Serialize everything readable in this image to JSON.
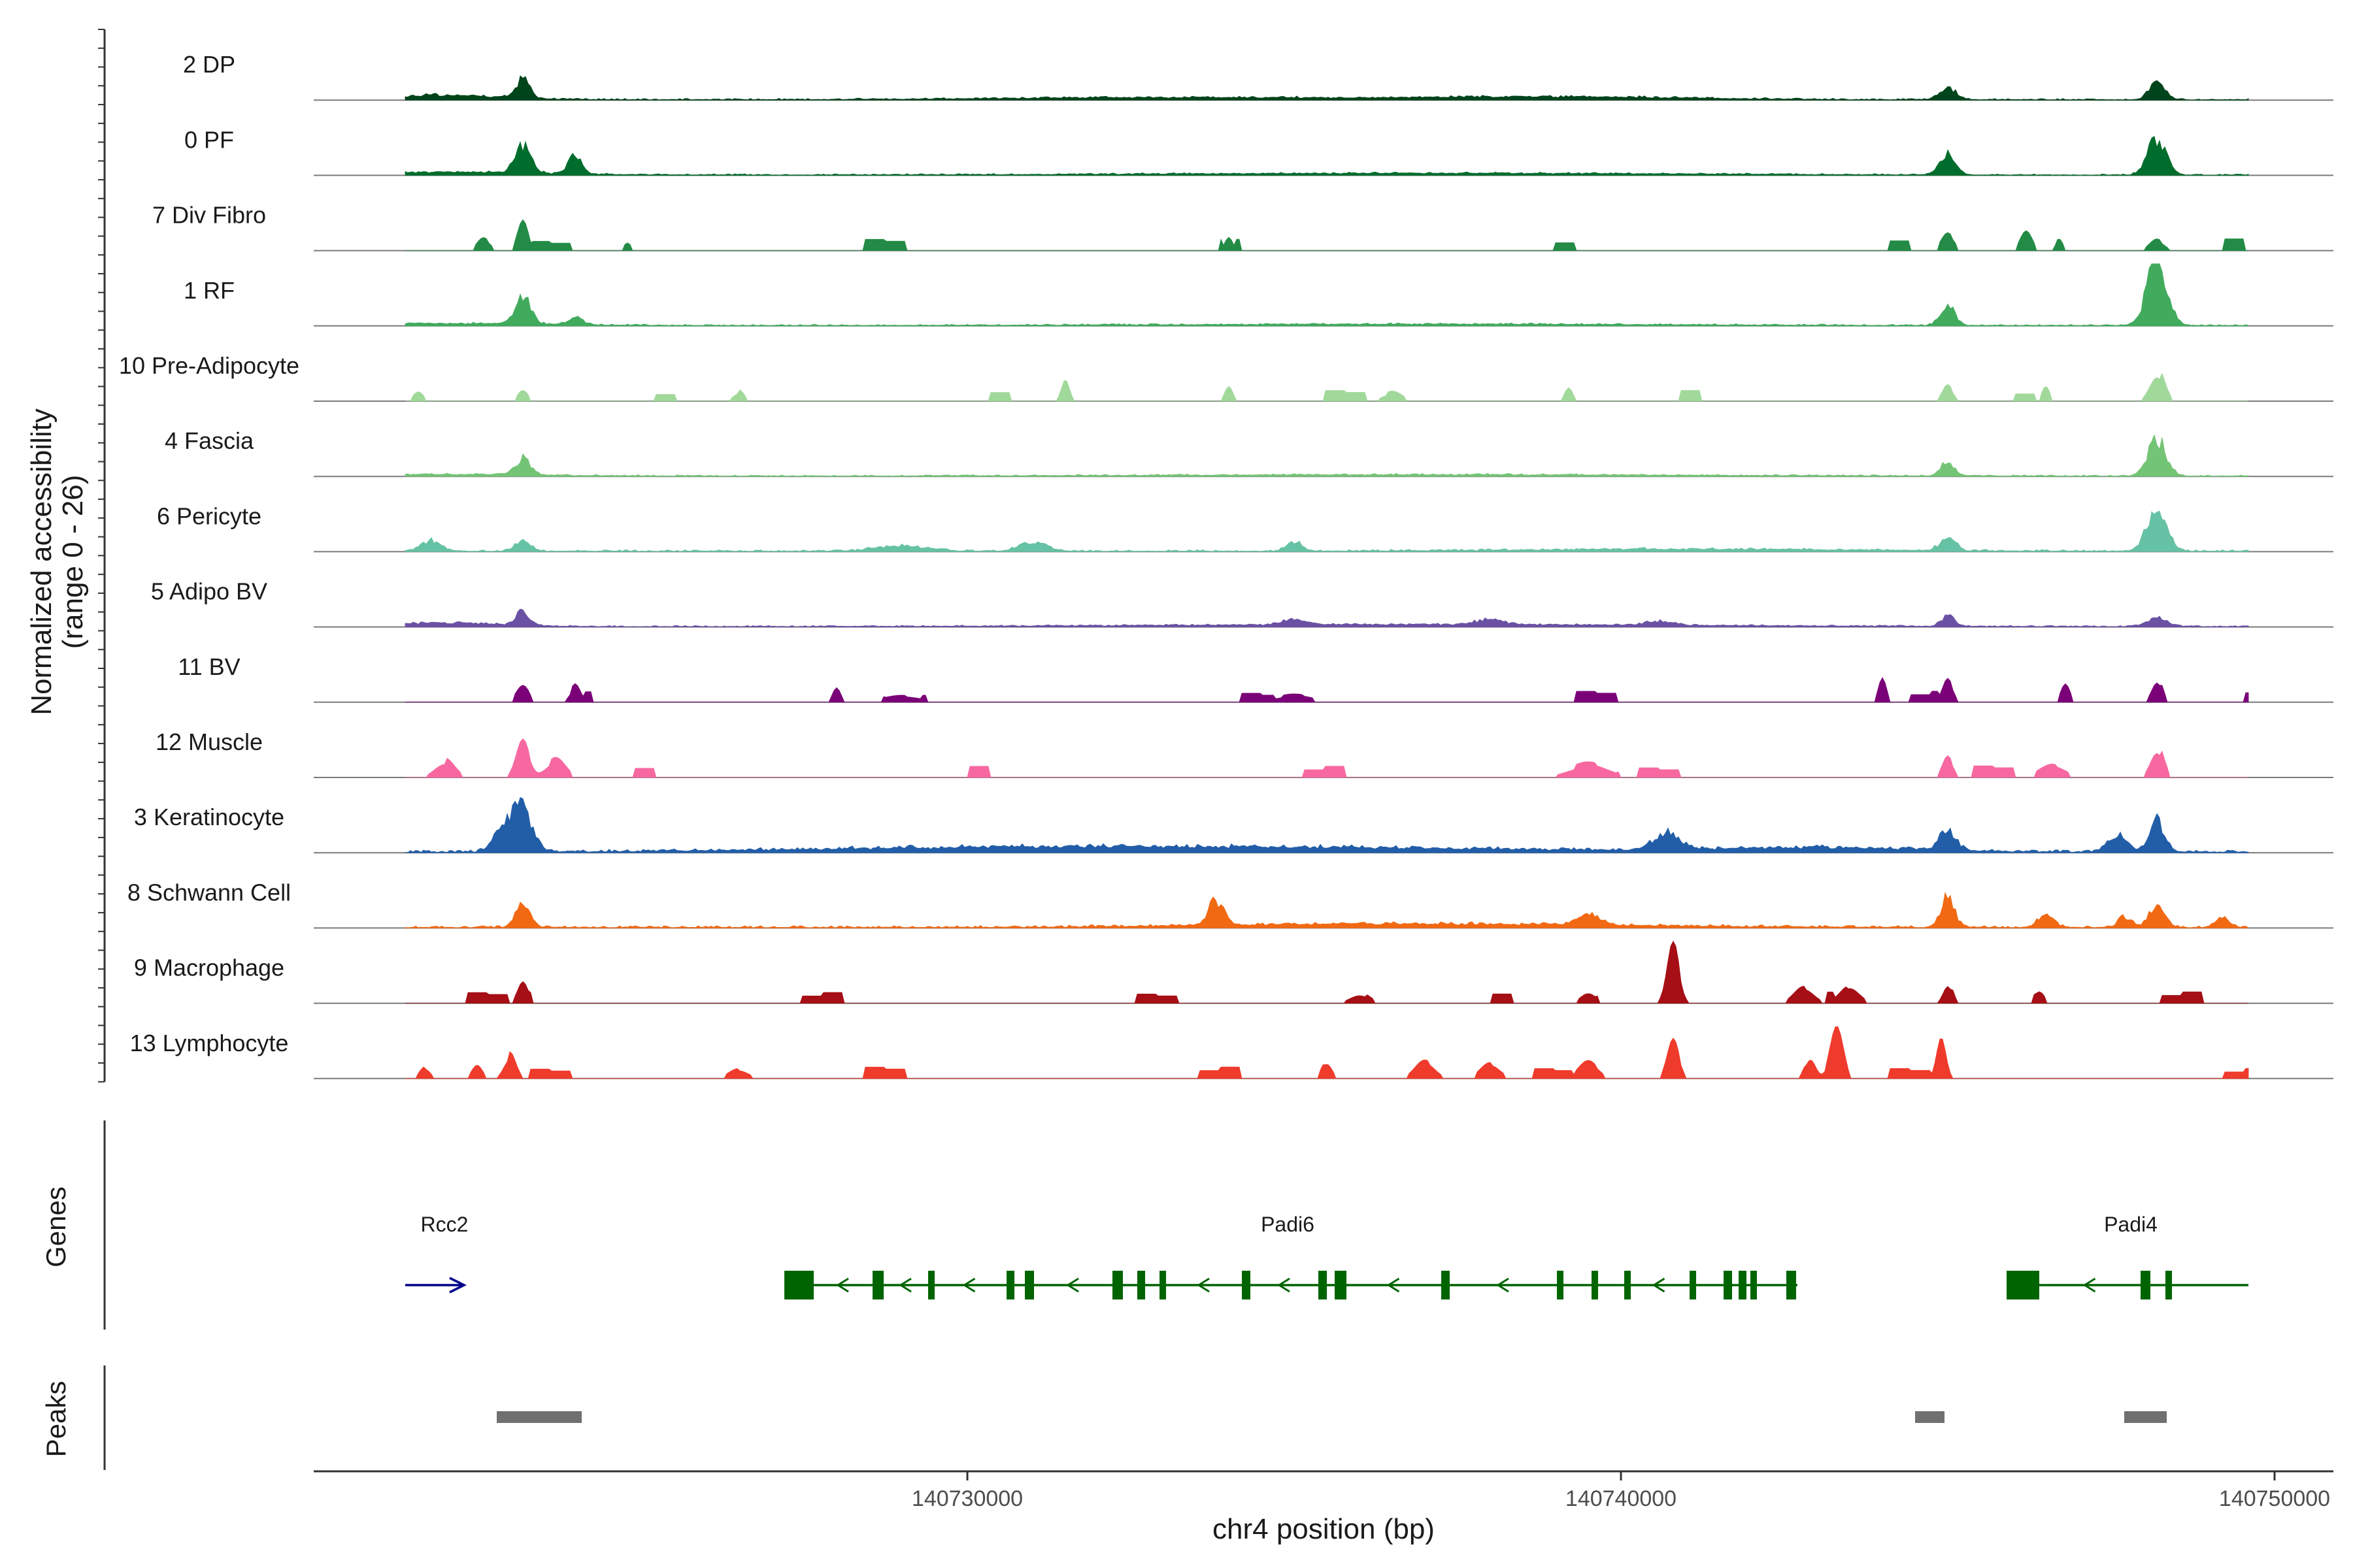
{
  "chart_data": {
    "type": "area",
    "title": "",
    "ylabel": "Normalized accessibility",
    "ylabel_range": "(range 0 - 26)",
    "ylim": [
      0,
      26
    ],
    "xlabel": "chr4 position (bp)",
    "xlim": [
      140720000,
      140750900
    ],
    "x_ticks": [
      140730000,
      140740000,
      140750000
    ],
    "x_tick_labels": [
      "140730000",
      "140740000",
      "140750000"
    ],
    "genes_panel_label": "Genes",
    "peaks_panel_label": "Peaks",
    "series": [
      {
        "name": "2 DP",
        "color": "#00441b",
        "sparse": false,
        "noise": 0.035,
        "peaks": [
          [
            140723200,
            0.55,
            100
          ],
          [
            140722000,
            0.12,
            900
          ],
          [
            140745000,
            0.35,
            120
          ],
          [
            140748200,
            0.48,
            120
          ],
          [
            140739000,
            0.08,
            2000
          ],
          [
            140733000,
            0.06,
            2500
          ]
        ]
      },
      {
        "name": "0 PF",
        "color": "#006d2c",
        "sparse": false,
        "noise": 0.03,
        "peaks": [
          [
            140723200,
            0.75,
            120
          ],
          [
            140724000,
            0.5,
            100
          ],
          [
            140745000,
            0.55,
            120
          ],
          [
            140748200,
            1.0,
            140
          ],
          [
            140722000,
            0.08,
            1500
          ],
          [
            140737000,
            0.05,
            4000
          ]
        ]
      },
      {
        "name": "7 Div Fibro",
        "color": "#238b45",
        "sparse": true,
        "noise": 0.25,
        "peaks": [
          [
            140723200,
            0.7,
            80
          ],
          [
            140722600,
            0.35,
            100
          ],
          [
            140745000,
            0.4,
            100
          ],
          [
            140746200,
            0.55,
            90
          ],
          [
            140748200,
            0.35,
            110
          ],
          [
            140734000,
            0.3,
            60
          ],
          [
            140724800,
            0.28,
            60
          ],
          [
            140746700,
            0.28,
            60
          ]
        ]
      },
      {
        "name": "1 RF",
        "color": "#41ab5d",
        "sparse": false,
        "noise": 0.03,
        "peaks": [
          [
            140723200,
            0.75,
            120
          ],
          [
            140724000,
            0.25,
            100
          ],
          [
            140745000,
            0.55,
            110
          ],
          [
            140748200,
            1.85,
            150
          ],
          [
            140722000,
            0.06,
            1500
          ],
          [
            140737000,
            0.04,
            4000
          ]
        ]
      },
      {
        "name": "10 Pre-Adipocyte",
        "color": "#a1d99b",
        "sparse": true,
        "noise": 0.2,
        "peaks": [
          [
            140721600,
            0.3,
            80
          ],
          [
            140723200,
            0.3,
            80
          ],
          [
            140726500,
            0.3,
            80
          ],
          [
            140731500,
            0.65,
            60
          ],
          [
            140734000,
            0.4,
            60
          ],
          [
            140739200,
            0.3,
            60
          ],
          [
            140745000,
            0.45,
            80
          ],
          [
            140746500,
            0.35,
            60
          ],
          [
            140748200,
            0.9,
            110
          ],
          [
            140736500,
            0.25,
            150
          ]
        ]
      },
      {
        "name": "4 Fascia",
        "color": "#74c476",
        "sparse": false,
        "noise": 0.03,
        "peaks": [
          [
            140723200,
            0.45,
            110
          ],
          [
            140745000,
            0.4,
            100
          ],
          [
            140748200,
            1.0,
            140
          ],
          [
            140722000,
            0.05,
            1500
          ],
          [
            140737000,
            0.04,
            4000
          ]
        ]
      },
      {
        "name": "6 Pericyte",
        "color": "#66c2a4",
        "sparse": false,
        "noise": 0.04,
        "peaks": [
          [
            140723200,
            0.3,
            120
          ],
          [
            140721800,
            0.3,
            150
          ],
          [
            140731000,
            0.25,
            200
          ],
          [
            140729000,
            0.15,
            400
          ],
          [
            140735000,
            0.25,
            120
          ],
          [
            140745000,
            0.35,
            120
          ],
          [
            140748200,
            1.2,
            150
          ],
          [
            140741000,
            0.06,
            2500
          ]
        ]
      },
      {
        "name": "5 Adipo BV",
        "color": "#6a51a3",
        "sparse": false,
        "noise": 0.03,
        "peaks": [
          [
            140723200,
            0.4,
            100
          ],
          [
            140745000,
            0.3,
            100
          ],
          [
            140748200,
            0.25,
            150
          ],
          [
            140735000,
            0.15,
            180
          ],
          [
            140738000,
            0.15,
            200
          ],
          [
            140740600,
            0.12,
            200
          ],
          [
            140722000,
            0.1,
            900
          ],
          [
            140737000,
            0.06,
            4000
          ]
        ]
      },
      {
        "name": "11 BV",
        "color": "#7a0177",
        "sparse": true,
        "noise": 0.3,
        "peaks": [
          [
            140723200,
            0.4,
            100
          ],
          [
            140724000,
            0.45,
            80
          ],
          [
            140728000,
            0.4,
            60
          ],
          [
            140744000,
            0.55,
            60
          ],
          [
            140745000,
            0.55,
            80
          ],
          [
            140746800,
            0.45,
            70
          ],
          [
            140748200,
            0.6,
            80
          ],
          [
            140735000,
            0.2,
            300
          ],
          [
            140729000,
            0.2,
            300
          ]
        ]
      },
      {
        "name": "12 Muscle",
        "color": "#f768a1",
        "sparse": true,
        "noise": 0.3,
        "peaks": [
          [
            140723200,
            1.0,
            100
          ],
          [
            140722000,
            0.5,
            150
          ],
          [
            140723700,
            0.45,
            150
          ],
          [
            140745000,
            0.55,
            80
          ],
          [
            140748200,
            0.85,
            100
          ],
          [
            140739500,
            0.4,
            300
          ],
          [
            140746600,
            0.3,
            200
          ]
        ]
      },
      {
        "name": "3 Keratinocyte",
        "color": "#225ea8",
        "sparse": false,
        "noise": 0.06,
        "peaks": [
          [
            140723200,
            1.15,
            150
          ],
          [
            140722900,
            0.6,
            150
          ],
          [
            140740700,
            0.45,
            200
          ],
          [
            140745000,
            0.6,
            120
          ],
          [
            140747600,
            0.45,
            150
          ],
          [
            140748200,
            0.85,
            120
          ],
          [
            140730500,
            0.12,
            3000
          ],
          [
            140736000,
            0.1,
            3000
          ],
          [
            140743000,
            0.12,
            1500
          ]
        ]
      },
      {
        "name": "8 Schwann Cell",
        "color": "#f16913",
        "sparse": false,
        "noise": 0.05,
        "peaks": [
          [
            140723200,
            0.65,
            110
          ],
          [
            140745000,
            0.95,
            100
          ],
          [
            140733800,
            0.7,
            110
          ],
          [
            140739500,
            0.35,
            150
          ],
          [
            140746500,
            0.35,
            120
          ],
          [
            140747700,
            0.3,
            100
          ],
          [
            140748200,
            0.6,
            120
          ],
          [
            140749200,
            0.3,
            100
          ],
          [
            140737000,
            0.1,
            3000
          ]
        ]
      },
      {
        "name": "9 Macrophage",
        "color": "#a50f15",
        "sparse": true,
        "noise": 0.3,
        "peaks": [
          [
            140723200,
            0.8,
            80
          ],
          [
            140740800,
            1.55,
            90
          ],
          [
            140745000,
            0.6,
            70
          ],
          [
            140742800,
            0.45,
            150
          ],
          [
            140743500,
            0.4,
            150
          ],
          [
            140746400,
            0.35,
            80
          ],
          [
            140736000,
            0.3,
            150
          ],
          [
            140739500,
            0.35,
            120
          ]
        ]
      },
      {
        "name": "13 Lymphocyte",
        "color": "#ef3b2c",
        "sparse": true,
        "noise": 0.35,
        "peaks": [
          [
            140723000,
            0.6,
            90
          ],
          [
            140740800,
            1.1,
            90
          ],
          [
            140743300,
            1.3,
            100
          ],
          [
            140744900,
            0.9,
            70
          ],
          [
            140742900,
            0.7,
            80
          ],
          [
            140735500,
            0.5,
            80
          ],
          [
            140737000,
            0.45,
            150
          ],
          [
            140738000,
            0.4,
            150
          ],
          [
            140739500,
            0.4,
            150
          ],
          [
            140726500,
            0.3,
            150
          ],
          [
            140721700,
            0.3,
            80
          ],
          [
            140722500,
            0.35,
            80
          ]
        ]
      }
    ],
    "genes": [
      {
        "name": "Rcc2",
        "strand": "+",
        "color": "#00008b",
        "start": 140721400,
        "end": 140722300,
        "label_x": 140722000,
        "exons": []
      },
      {
        "name": "Padi6",
        "strand": "-",
        "color": "#006400",
        "start": 140727200,
        "end": 140742700,
        "label_x": 140734900,
        "exons": [
          [
            140727200,
            140727650
          ],
          [
            140728550,
            140728720
          ],
          [
            140729400,
            140729470
          ],
          [
            140730600,
            140730720
          ],
          [
            140730880,
            140731020
          ],
          [
            140732220,
            140732380
          ],
          [
            140732600,
            140732720
          ],
          [
            140732940,
            140733040
          ],
          [
            140734200,
            140734330
          ],
          [
            140735370,
            140735500
          ],
          [
            140735620,
            140735800
          ],
          [
            140737250,
            140737380
          ],
          [
            140739020,
            140739120
          ],
          [
            140739550,
            140739620
          ],
          [
            140740050,
            140740120
          ],
          [
            140741050,
            140741120
          ],
          [
            140741570,
            140741700
          ],
          [
            140741800,
            140741920
          ],
          [
            140741980,
            140742080
          ],
          [
            140742530,
            140742680
          ]
        ]
      },
      {
        "name": "Padi4",
        "strand": "-",
        "color": "#006400",
        "start": 140745900,
        "end": 140749600,
        "label_x": 140747800,
        "exons": [
          [
            140745900,
            140746400
          ],
          [
            140747950,
            140748100
          ],
          [
            140748330,
            140748420
          ]
        ]
      }
    ],
    "peak_regions": [
      [
        140722800,
        140724100
      ],
      [
        140744500,
        140744950
      ],
      [
        140747700,
        140748350
      ]
    ]
  }
}
